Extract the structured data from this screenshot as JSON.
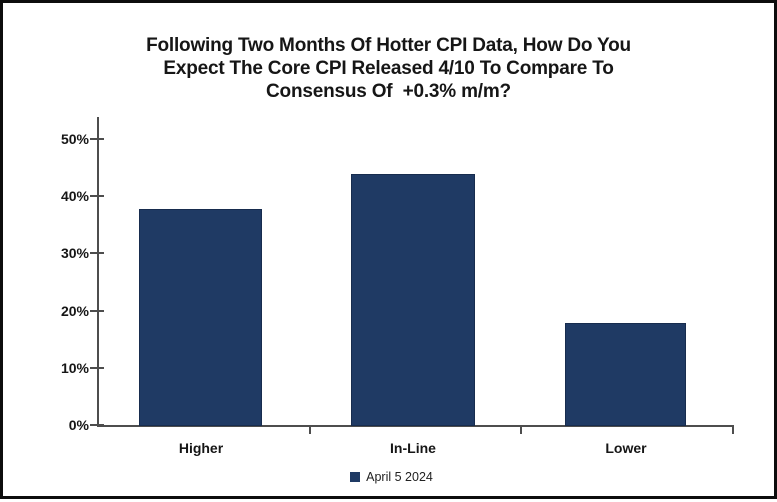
{
  "chart_data": {
    "type": "bar",
    "title": "Following Two Months Of Hotter CPI Data, How Do You Expect The Core CPI Released 4/10 To Compare To Consensus Of +0.3% m/m?",
    "title_lines": [
      "Following Two Months Of Hotter CPI Data, How Do You",
      "Expect The Core CPI Released 4/10 To Compare To",
      "Consensus Of  +0.3% m/m?"
    ],
    "categories": [
      "Higher",
      "In-Line",
      "Lower"
    ],
    "values": [
      38,
      44,
      18
    ],
    "unit": "%",
    "series": [
      {
        "name": "April 5 2024",
        "values": [
          38,
          44,
          18
        ]
      }
    ],
    "xlabel": "",
    "ylabel": "",
    "ylim": [
      0,
      50
    ],
    "ytick_labels": [
      "0%",
      "10%",
      "20%",
      "30%",
      "40%",
      "50%"
    ],
    "grid": false,
    "legend_position": "bottom",
    "bar_color": "#1f3a64",
    "axis_color": "#4d4d4d"
  },
  "legend": {
    "label": "April 5 2024",
    "swatch_color": "#1f3a64"
  }
}
